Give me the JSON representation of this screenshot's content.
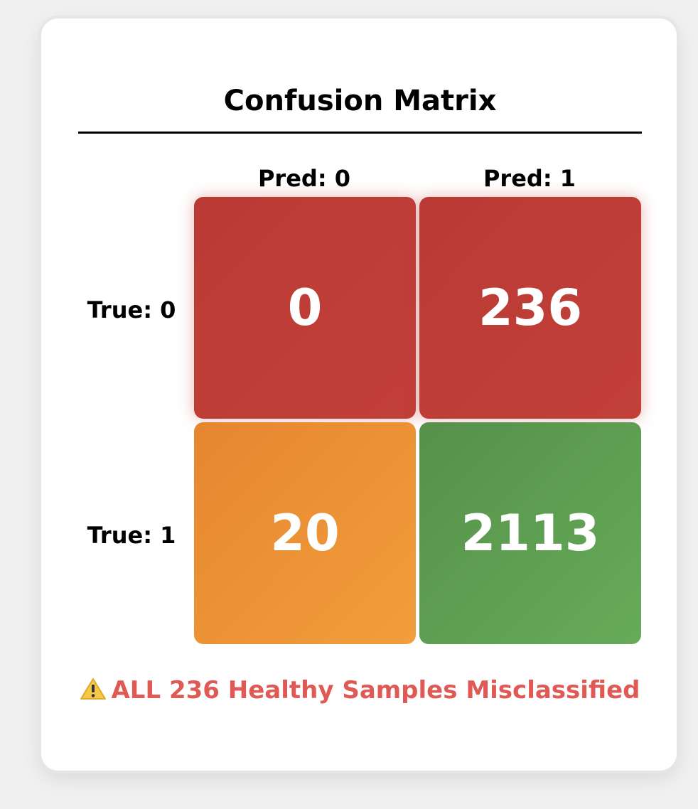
{
  "chart_data": {
    "type": "heatmap",
    "title": "Confusion Matrix",
    "x_labels": [
      "Pred: 0",
      "Pred: 1"
    ],
    "y_labels": [
      "True: 0",
      "True: 1"
    ],
    "values": [
      [
        0,
        236
      ],
      [
        20,
        2113
      ]
    ],
    "cell_colors": [
      [
        "#bf3d37",
        "#bf3d37"
      ],
      [
        "#ec9336",
        "#5e9e52"
      ]
    ]
  },
  "warning": {
    "icon": "warning-icon",
    "text": "ALL 236 Healthy Samples Misclassified",
    "color": "#e05a55"
  }
}
